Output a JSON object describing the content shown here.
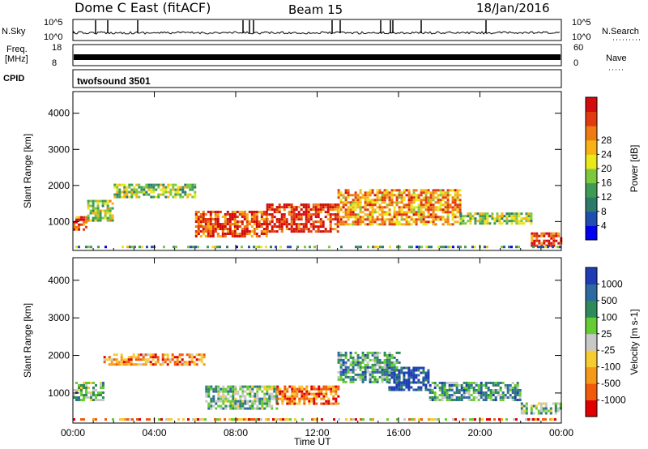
{
  "header": {
    "station": "Dome C East (fitACF)",
    "beam": "Beam 15",
    "date": "18/Jan/2016"
  },
  "panels": {
    "nsky": {
      "label": "N.Sky",
      "tick_top": "10^5",
      "tick_bottom": "10^0"
    },
    "freq": {
      "label_line1": "Freq.",
      "label_line2": "[MHz]",
      "tick_top": "18",
      "tick_bottom": "8"
    },
    "cpid": {
      "label": "CPID",
      "value": "twofsound 3501"
    },
    "right": {
      "nsearch_label": "N.Search",
      "nsearch_top": "10^5",
      "nsearch_bottom": "10^0",
      "nave_label": "Nave",
      "nave_top": "60",
      "nave_bottom": "0"
    }
  },
  "chart_data": [
    {
      "type": "heatmap",
      "title": "",
      "xlabel": "",
      "ylabel": "Slant Range [km]",
      "x_ticks": [
        "00:00",
        "04:00",
        "08:00",
        "12:00",
        "16:00",
        "20:00",
        "00:00"
      ],
      "y_ticks": [
        1000,
        2000,
        3000,
        4000
      ],
      "ylim": [
        200,
        4600
      ],
      "colorbar": {
        "label": "Power [dB]",
        "ticks": [
          "4",
          "8",
          "12",
          "16",
          "20",
          "24",
          "28"
        ],
        "colors": [
          "#0000ee",
          "#1e4fb0",
          "#2e7a6a",
          "#3f9a55",
          "#7cc83f",
          "#e8e81a",
          "#f7b214",
          "#ee7a12",
          "#e03a0e",
          "#d20c0c"
        ]
      },
      "echo_regions": [
        {
          "t_start": 0.0,
          "t_end": 0.7,
          "range_start": 750,
          "range_end": 1150,
          "level": 0.8
        },
        {
          "t_start": 0.7,
          "t_end": 2.0,
          "range_start": 1000,
          "range_end": 1600,
          "level": 0.5
        },
        {
          "t_start": 2.0,
          "t_end": 6.0,
          "range_start": 1700,
          "range_end": 2050,
          "level": 0.45
        },
        {
          "t_start": 6.0,
          "t_end": 9.5,
          "range_start": 600,
          "range_end": 1300,
          "level": 0.85
        },
        {
          "t_start": 9.5,
          "t_end": 13.0,
          "range_start": 700,
          "range_end": 1500,
          "level": 0.9
        },
        {
          "t_start": 13.0,
          "t_end": 19.0,
          "range_start": 900,
          "range_end": 1900,
          "level": 0.7
        },
        {
          "t_start": 19.0,
          "t_end": 22.5,
          "range_start": 950,
          "range_end": 1250,
          "level": 0.45
        },
        {
          "t_start": 22.5,
          "t_end": 24.0,
          "range_start": 350,
          "range_end": 700,
          "level": 0.85
        }
      ]
    },
    {
      "type": "heatmap",
      "title": "",
      "xlabel": "Time UT",
      "ylabel": "Slant Range [km]",
      "x_ticks": [
        "00:00",
        "04:00",
        "08:00",
        "12:00",
        "16:00",
        "20:00",
        "00:00"
      ],
      "y_ticks": [
        1000,
        2000,
        3000,
        4000
      ],
      "ylim": [
        200,
        4600
      ],
      "colorbar": {
        "label": "Velocity [m s-1]",
        "ticks": [
          "-1000",
          "-500",
          "-100",
          "-25",
          "25",
          "100",
          "500",
          "1000"
        ],
        "colors": [
          "#e00000",
          "#f05a0a",
          "#f59a18",
          "#f7cc30",
          "#c8c8c8",
          "#66cc33",
          "#2e8a58",
          "#2d6aa0",
          "#1e3cb4"
        ]
      },
      "echo_regions": [
        {
          "t_start": 0.0,
          "t_end": 1.5,
          "range_start": 800,
          "range_end": 1300,
          "level": 0.6
        },
        {
          "t_start": 1.5,
          "t_end": 6.5,
          "range_start": 1750,
          "range_end": 2050,
          "level": 0.25
        },
        {
          "t_start": 6.5,
          "t_end": 10.0,
          "range_start": 600,
          "range_end": 1200,
          "level": 0.62
        },
        {
          "t_start": 10.0,
          "t_end": 13.0,
          "range_start": 700,
          "range_end": 1200,
          "level": 0.2
        },
        {
          "t_start": 13.0,
          "t_end": 16.0,
          "range_start": 1300,
          "range_end": 2100,
          "level": 0.7
        },
        {
          "t_start": 15.5,
          "t_end": 17.5,
          "range_start": 1100,
          "range_end": 1700,
          "level": 0.95
        },
        {
          "t_start": 17.5,
          "t_end": 22.0,
          "range_start": 800,
          "range_end": 1300,
          "level": 0.7
        },
        {
          "t_start": 22.0,
          "t_end": 24.0,
          "range_start": 450,
          "range_end": 750,
          "level": 0.6
        }
      ]
    }
  ]
}
